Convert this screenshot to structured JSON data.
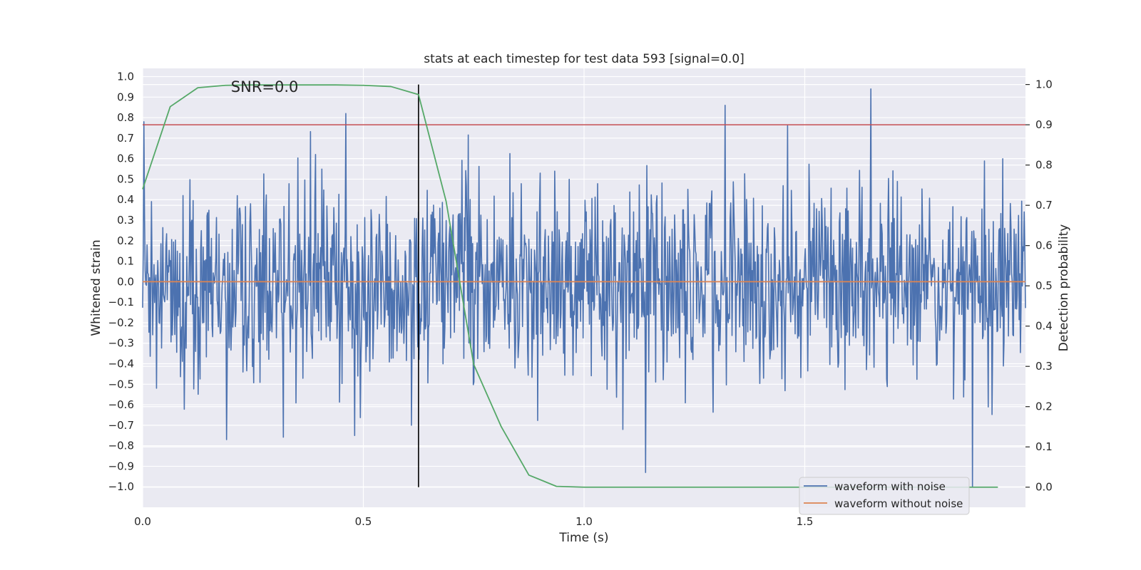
{
  "chart_data": {
    "type": "line",
    "title": "stats at each timestep for test data 593 [signal=0.0]",
    "xlabel": "Time (s)",
    "ylabel_left": "Whitened strain",
    "ylabel_right": "Detection probability",
    "xlim": [
      0.0,
      2.0
    ],
    "ylim_left": [
      -1.1,
      1.04
    ],
    "ylim_right": [
      -0.05,
      1.04
    ],
    "xticks": [
      0.0,
      0.5,
      1.0,
      1.5
    ],
    "xtick_labels": [
      "0.0",
      "0.5",
      "1.0",
      "1.5"
    ],
    "yticks_left": [
      1.0,
      0.9,
      0.8,
      0.7,
      0.6,
      0.5,
      0.4,
      0.3,
      0.2,
      0.1,
      0.0,
      -0.1,
      -0.2,
      -0.3,
      -0.4,
      -0.5,
      -0.6,
      -0.7,
      -0.8,
      -0.9,
      -1.0
    ],
    "ytick_labels_left": [
      "1.0",
      "0.9",
      "0.8",
      "0.7",
      "0.6",
      "0.5",
      "0.4",
      "0.3",
      "0.2",
      "0.1",
      "0.0",
      "−0.1",
      "−0.2",
      "−0.3",
      "−0.4",
      "−0.5",
      "−0.6",
      "−0.7",
      "−0.8",
      "−0.9",
      "−1.0"
    ],
    "yticks_right": [
      1.0,
      0.9,
      0.8,
      0.7,
      0.6,
      0.5,
      0.4,
      0.3,
      0.2,
      0.1,
      0.0
    ],
    "ytick_labels_right": [
      "1.0",
      "0.9",
      "0.8",
      "0.7",
      "0.6",
      "0.5",
      "0.4",
      "0.3",
      "0.2",
      "0.1",
      "0.0"
    ],
    "annotation": "SNR=0.0",
    "annotation_at": {
      "x": 0.2,
      "y": 0.95
    },
    "series": [
      {
        "name": "waveform with noise",
        "axis": "left",
        "color": "#4c72b0",
        "kind": "noise",
        "x_range": [
          0.0,
          2.0
        ],
        "samples": 1400,
        "std": 0.24,
        "clip": [
          -1.0,
          0.94
        ],
        "notable_peaks": [
          {
            "x": 0.003,
            "y": 0.78
          },
          {
            "x": 0.46,
            "y": 0.82
          },
          {
            "x": 1.32,
            "y": 0.86
          },
          {
            "x": 1.65,
            "y": 0.94
          },
          {
            "x": 1.14,
            "y": -0.93
          },
          {
            "x": 1.88,
            "y": -1.0
          },
          {
            "x": 0.19,
            "y": -0.77
          },
          {
            "x": 0.48,
            "y": -0.75
          }
        ]
      },
      {
        "name": "waveform without noise",
        "axis": "left",
        "color": "#dd8452",
        "x": [
          0.0,
          2.0
        ],
        "y": [
          0.0,
          0.0
        ]
      },
      {
        "name": "detection probability",
        "axis": "right",
        "color": "#55a868",
        "x": [
          0.0,
          0.0625,
          0.125,
          0.1875,
          0.25,
          0.3125,
          0.375,
          0.4375,
          0.5,
          0.5625,
          0.625,
          0.6875,
          0.75,
          0.8125,
          0.875,
          0.9375,
          1.0,
          1.0625,
          1.125,
          1.1875,
          1.25,
          1.3125,
          1.375,
          1.4375,
          1.5,
          1.5625,
          1.625,
          1.6875,
          1.75,
          1.8125,
          1.875,
          1.9375
        ],
        "y": [
          0.74,
          0.945,
          0.992,
          0.998,
          0.999,
          0.999,
          0.999,
          0.999,
          0.998,
          0.995,
          0.975,
          0.71,
          0.305,
          0.15,
          0.03,
          0.002,
          0.0,
          0.0,
          0.0,
          0.0,
          0.0,
          0.0,
          0.0,
          0.0,
          0.0,
          0.0,
          0.0,
          0.0,
          0.0,
          0.0,
          0.0,
          0.0
        ]
      }
    ],
    "hlines": [
      {
        "axis": "right",
        "y": 0.9,
        "color": "#c44e52"
      }
    ],
    "vlines": [
      {
        "x": 0.625,
        "y_range": [
          0.0,
          1.0
        ],
        "axis": "right",
        "color": "#000000"
      }
    ],
    "legend": {
      "location": "lower-right",
      "entries": [
        {
          "label": "waveform with noise",
          "color": "#4c72b0"
        },
        {
          "label": "waveform without noise",
          "color": "#dd8452"
        }
      ]
    },
    "style": {
      "background": "#eaeaf2",
      "grid": true,
      "grid_color": "#ffffff"
    }
  }
}
